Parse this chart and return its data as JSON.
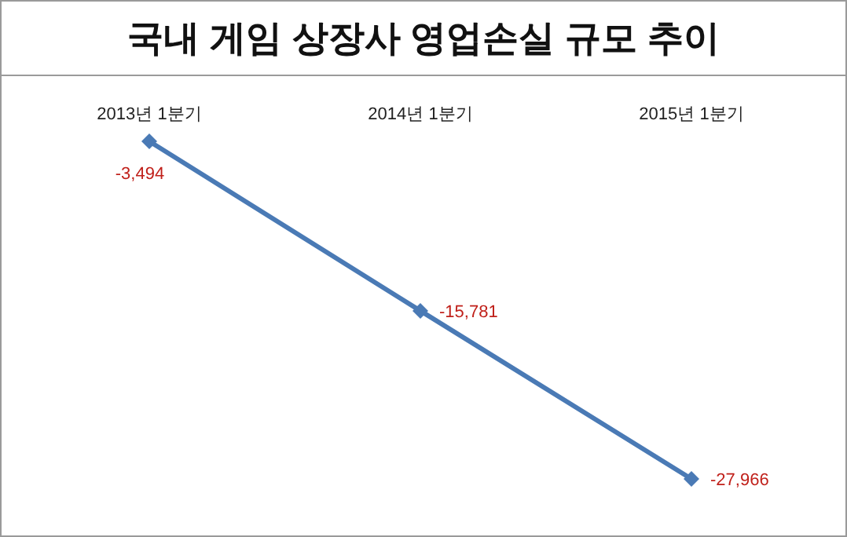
{
  "chart_data": {
    "type": "line",
    "title": "국내 게임 상장사 영업손실 규모 추이",
    "categories": [
      "2013년 1분기",
      "2014년 1분기",
      "2015년 1분기"
    ],
    "series": [
      {
        "color": "#4a7ab5",
        "values": [
          -3494,
          -15781,
          -27966
        ],
        "value_labels": [
          "-3,494",
          "-15,781",
          "-27,966"
        ]
      }
    ],
    "marker": "diamond",
    "line_style": "solid"
  }
}
